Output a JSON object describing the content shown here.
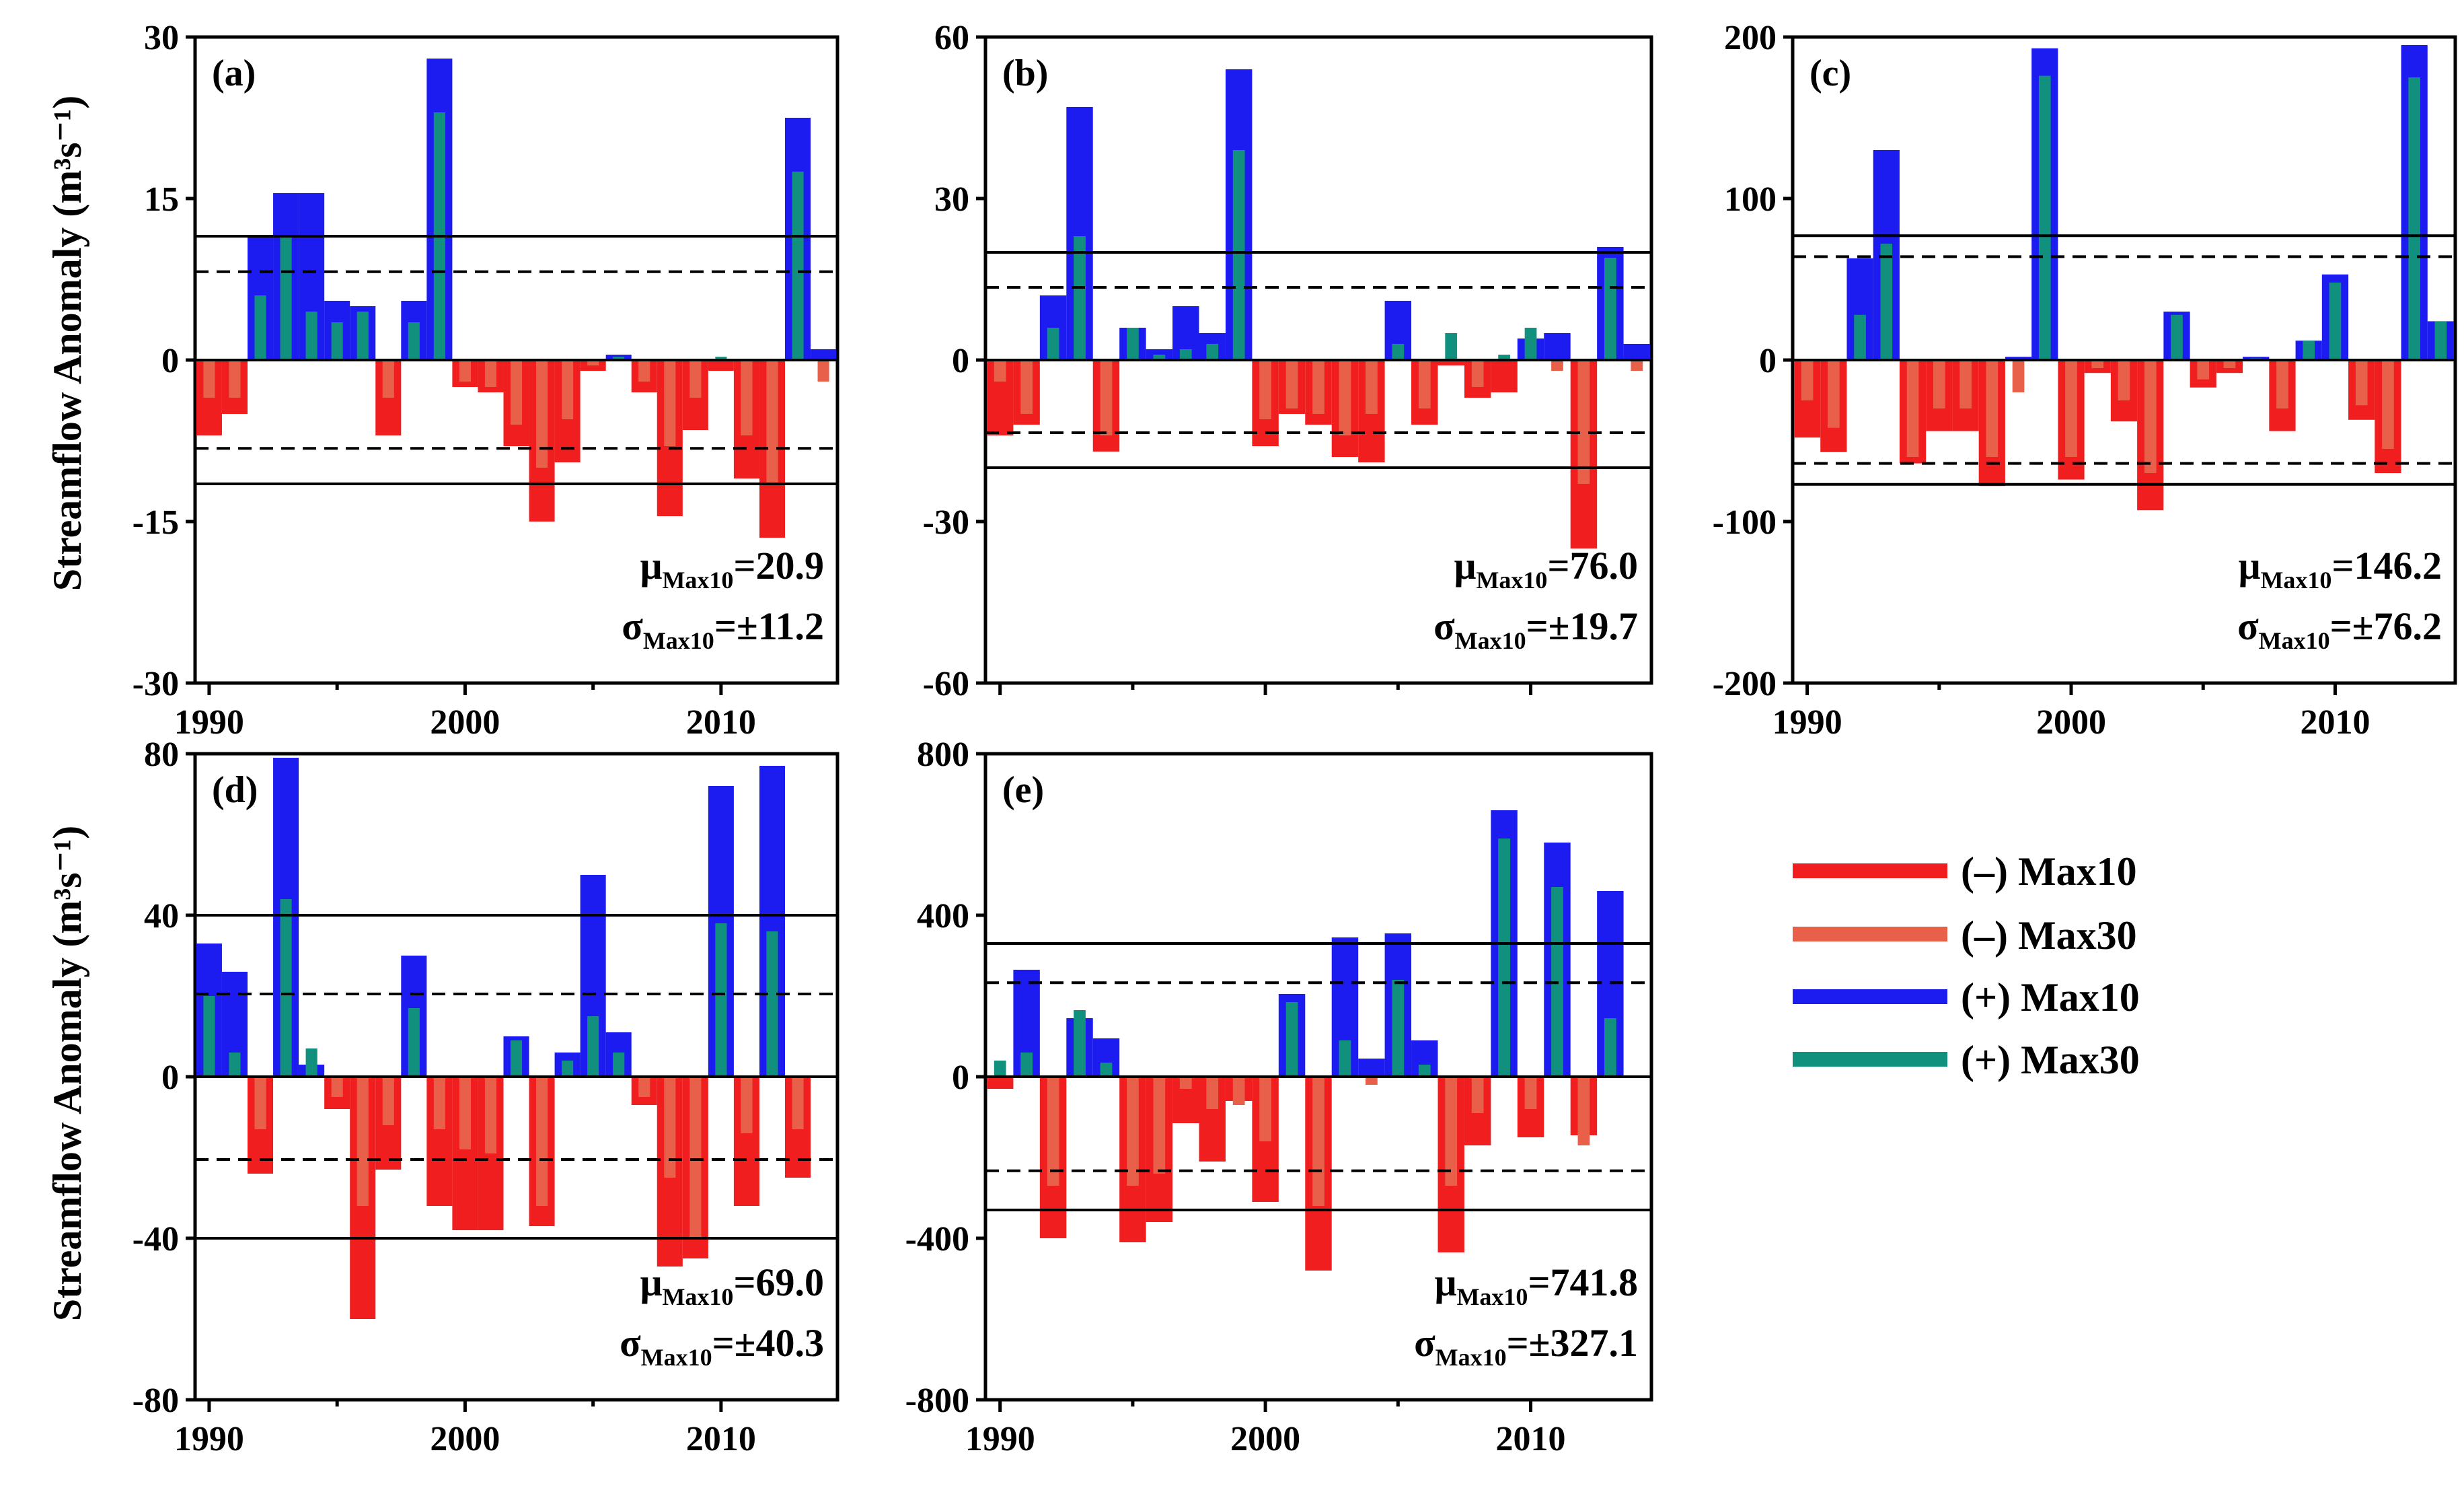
{
  "figure": {
    "ylabel": "Streamflow Anomaly (m³s⁻¹)",
    "colors": {
      "neg_max10": "#f01e1e",
      "neg_max30": "#e8604a",
      "pos_max10": "#1c1cf0",
      "pos_max30": "#12907e"
    },
    "legend": [
      {
        "key": "neg_max10",
        "label": "(–) Max10"
      },
      {
        "key": "neg_max30",
        "label": "(–) Max30"
      },
      {
        "key": "pos_max10",
        "label": "(+) Max10"
      },
      {
        "key": "pos_max30",
        "label": "(+) Max30"
      }
    ]
  },
  "chart_data": [
    {
      "type": "bar",
      "panel": "(a)",
      "x": [
        1990,
        1991,
        1992,
        1993,
        1994,
        1995,
        1996,
        1997,
        1998,
        1999,
        2000,
        2001,
        2002,
        2003,
        2004,
        2005,
        2006,
        2007,
        2008,
        2009,
        2010,
        2011,
        2012,
        2013,
        2014
      ],
      "series": [
        {
          "name": "Max10",
          "values": [
            -7,
            -5,
            11.5,
            15.5,
            15.5,
            5.5,
            5,
            -7,
            5.5,
            28,
            -2.5,
            -3,
            -8,
            -15,
            -9.5,
            -1,
            0.5,
            -3,
            -14.5,
            -6.5,
            -1,
            -11,
            -16.5,
            22.5,
            1
          ]
        },
        {
          "name": "Max30",
          "values": [
            -3.5,
            -3.5,
            6,
            11.5,
            4.5,
            3.5,
            4.5,
            -3.5,
            3.5,
            23,
            -2,
            -2.5,
            -6,
            -10,
            -5.5,
            -0.5,
            0.3,
            -2,
            -8,
            -3.5,
            0.3,
            -7,
            -11.5,
            17.5,
            -2
          ]
        }
      ],
      "ylim": [
        -30,
        30
      ],
      "yticks": [
        -30,
        -15,
        0,
        15,
        30
      ],
      "xticks": [
        1990,
        2000,
        2010
      ],
      "ref_solid": 11.5,
      "ref_dash": 8.2,
      "mu_value": "=20.9",
      "sigma_value": "=±11.2"
    },
    {
      "type": "bar",
      "panel": "(b)",
      "x": [
        1990,
        1991,
        1992,
        1993,
        1994,
        1995,
        1996,
        1997,
        1998,
        1999,
        2000,
        2001,
        2002,
        2003,
        2004,
        2005,
        2006,
        2007,
        2008,
        2009,
        2010,
        2011,
        2012,
        2013,
        2014
      ],
      "series": [
        {
          "name": "Max10",
          "values": [
            -14,
            -12,
            12,
            47,
            -17,
            6,
            2,
            10,
            5,
            54,
            -16,
            -10,
            -12,
            -18,
            -19,
            11,
            -12,
            -1,
            -7,
            -6,
            4,
            5,
            -35,
            21,
            3
          ]
        },
        {
          "name": "Max30",
          "values": [
            -4,
            -10,
            6,
            23,
            -14,
            6,
            1,
            2,
            3,
            39,
            -11,
            -9,
            -10,
            -14,
            -10,
            3,
            -9,
            5,
            -5,
            1,
            6,
            -2,
            -23,
            19,
            -2
          ]
        }
      ],
      "ylim": [
        -60,
        60
      ],
      "yticks": [
        -60,
        -30,
        0,
        30,
        60
      ],
      "xticks": [],
      "ref_solid": 20,
      "ref_dash": 13.5,
      "mu_value": "=76.0",
      "sigma_value": "=±19.7"
    },
    {
      "type": "bar",
      "panel": "(c)",
      "x": [
        1990,
        1991,
        1992,
        1993,
        1994,
        1995,
        1996,
        1997,
        1998,
        1999,
        2000,
        2001,
        2002,
        2003,
        2004,
        2005,
        2006,
        2007,
        2008,
        2009,
        2010,
        2011,
        2012,
        2013,
        2014
      ],
      "series": [
        {
          "name": "Max10",
          "values": [
            -48,
            -57,
            63,
            130,
            -64,
            -44,
            -44,
            -78,
            2,
            193,
            -74,
            -8,
            -38,
            -93,
            30,
            -17,
            -8,
            2,
            -44,
            12,
            53,
            -37,
            -70,
            195,
            24
          ]
        },
        {
          "name": "Max30",
          "values": [
            -25,
            -42,
            28,
            72,
            -60,
            -30,
            -30,
            -60,
            -20,
            176,
            -60,
            -5,
            -25,
            -70,
            28,
            -12,
            -5,
            1,
            -30,
            12,
            48,
            -28,
            -55,
            175,
            24
          ]
        }
      ],
      "ylim": [
        -200,
        200
      ],
      "yticks": [
        -200,
        -100,
        0,
        100,
        200
      ],
      "xticks": [
        1990,
        2000,
        2010
      ],
      "ref_solid": 77,
      "ref_dash": 64,
      "mu_value": "=146.2",
      "sigma_value": "=±76.2"
    },
    {
      "type": "bar",
      "panel": "(d)",
      "x": [
        1990,
        1991,
        1992,
        1993,
        1994,
        1995,
        1996,
        1997,
        1998,
        1999,
        2000,
        2001,
        2002,
        2003,
        2004,
        2005,
        2006,
        2007,
        2008,
        2009,
        2010,
        2011,
        2012,
        2013,
        2014
      ],
      "series": [
        {
          "name": "Max10",
          "values": [
            33,
            26,
            -24,
            79,
            3,
            -8,
            -60,
            -23,
            30,
            -32,
            -38,
            -38,
            10,
            -37,
            6,
            50,
            11,
            -7,
            -47,
            -45,
            72,
            -32,
            77,
            -25,
            0
          ]
        },
        {
          "name": "Max30",
          "values": [
            20,
            6,
            -13,
            44,
            7,
            -5,
            -32,
            -12,
            17,
            -13,
            -18,
            -19,
            9,
            -32,
            4,
            15,
            6,
            -5,
            -25,
            -40,
            38,
            -14,
            36,
            -13,
            0
          ]
        }
      ],
      "ylim": [
        -80,
        80
      ],
      "yticks": [
        -80,
        -40,
        0,
        40,
        80
      ],
      "xticks": [
        1990,
        2000,
        2010
      ],
      "ref_solid": 40,
      "ref_dash": 20.5,
      "mu_value": "=69.0",
      "sigma_value": "=±40.3"
    },
    {
      "type": "bar",
      "panel": "(e)",
      "x": [
        1990,
        1991,
        1992,
        1993,
        1994,
        1995,
        1996,
        1997,
        1998,
        1999,
        2000,
        2001,
        2002,
        2003,
        2004,
        2005,
        2006,
        2007,
        2008,
        2009,
        2010,
        2011,
        2012,
        2013,
        2014
      ],
      "series": [
        {
          "name": "Max10",
          "values": [
            -30,
            265,
            -400,
            145,
            95,
            -410,
            -360,
            -115,
            -210,
            -60,
            -310,
            205,
            -480,
            345,
            45,
            355,
            90,
            -435,
            -170,
            660,
            -150,
            580,
            -145,
            460,
            0
          ]
        },
        {
          "name": "Max30",
          "values": [
            40,
            60,
            -270,
            165,
            35,
            -270,
            -240,
            -30,
            -80,
            -70,
            -160,
            185,
            -320,
            90,
            -20,
            240,
            30,
            -270,
            -90,
            590,
            -80,
            470,
            -170,
            145,
            0
          ]
        }
      ],
      "ylim": [
        -800,
        800
      ],
      "yticks": [
        -800,
        -400,
        0,
        400,
        800
      ],
      "xticks": [
        1990,
        2000,
        2010
      ],
      "ref_solid": 330,
      "ref_dash": 233,
      "mu_value": "=741.8",
      "sigma_value": "=±327.1"
    }
  ]
}
